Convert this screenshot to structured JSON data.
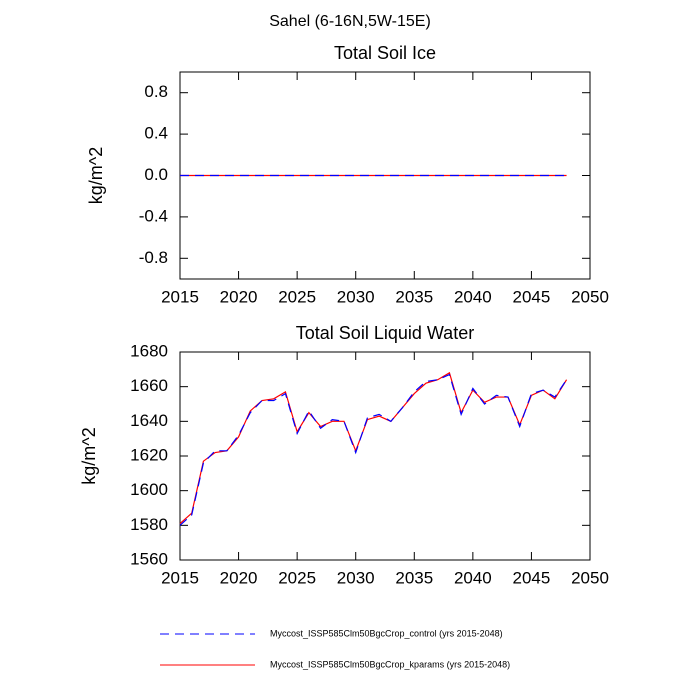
{
  "title": "Sahel (6-16N,5W-15E)",
  "chart_data": [
    {
      "type": "line",
      "title": "Total Soil Ice",
      "y_label": "kg/m^2",
      "x": [
        2015,
        2016,
        2017,
        2018,
        2019,
        2020,
        2021,
        2022,
        2023,
        2024,
        2025,
        2026,
        2027,
        2028,
        2029,
        2030,
        2031,
        2032,
        2033,
        2034,
        2035,
        2036,
        2037,
        2038,
        2039,
        2040,
        2041,
        2042,
        2043,
        2044,
        2045,
        2046,
        2047,
        2048
      ],
      "series": [
        {
          "color": "#0000ff",
          "line_style": "dashed",
          "values": [
            0,
            0,
            0,
            0,
            0,
            0,
            0,
            0,
            0,
            0,
            0,
            0,
            0,
            0,
            0,
            0,
            0,
            0,
            0,
            0,
            0,
            0,
            0,
            0,
            0,
            0,
            0,
            0,
            0,
            0,
            0,
            0,
            0,
            0
          ]
        },
        {
          "color": "#ff0000",
          "line_style": "solid",
          "values": [
            0,
            0,
            0,
            0,
            0,
            0,
            0,
            0,
            0,
            0,
            0,
            0,
            0,
            0,
            0,
            0,
            0,
            0,
            0,
            0,
            0,
            0,
            0,
            0,
            0,
            0,
            0,
            0,
            0,
            0,
            0,
            0,
            0,
            0
          ]
        }
      ],
      "xlim": [
        2015,
        2050
      ],
      "xticks": [
        2015,
        2020,
        2025,
        2030,
        2035,
        2040,
        2045,
        2050
      ],
      "ylim": [
        -1,
        1
      ],
      "yticks": [
        -0.8,
        -0.4,
        {
          "value": 0,
          "label": "0.0"
        },
        0.4,
        0.8
      ]
    },
    {
      "type": "line",
      "title": "Total Soil Liquid Water",
      "y_label": "kg/m^2",
      "x": [
        2015,
        2016,
        2017,
        2018,
        2019,
        2020,
        2021,
        2022,
        2023,
        2024,
        2025,
        2026,
        2027,
        2028,
        2029,
        2030,
        2031,
        2032,
        2033,
        2034,
        2035,
        2036,
        2037,
        2038,
        2039,
        2040,
        2041,
        2042,
        2043,
        2044,
        2045,
        2046,
        2047,
        2048
      ],
      "series": [
        {
          "name": "Myccost_ISSP585Clm50BgcCrop_control (yrs 2015-2048)",
          "color": "#0000ff",
          "line_style": "dashed",
          "values": [
            1580,
            1586,
            1616,
            1623,
            1623,
            1632,
            1645,
            1652,
            1652,
            1656,
            1633,
            1646,
            1636,
            1641,
            1640,
            1622,
            1642,
            1644,
            1640,
            1648,
            1657,
            1663,
            1664,
            1667,
            1644,
            1659,
            1650,
            1655,
            1654,
            1637,
            1656,
            1658,
            1654,
            1664
          ]
        },
        {
          "name": "Myccost_ISSP585Clm50BgcCrop_kparams (yrs 2015-2048)",
          "color": "#ff0000",
          "line_style": "solid",
          "values": [
            1581,
            1587,
            1617,
            1622,
            1623,
            1631,
            1646,
            1652,
            1653,
            1657,
            1634,
            1645,
            1637,
            1640,
            1640,
            1623,
            1641,
            1643,
            1640,
            1648,
            1656,
            1662,
            1664,
            1668,
            1645,
            1658,
            1651,
            1654,
            1654,
            1638,
            1655,
            1658,
            1653,
            1664
          ]
        }
      ],
      "xlim": [
        2015,
        2050
      ],
      "xticks": [
        2015,
        2020,
        2025,
        2030,
        2035,
        2040,
        2045,
        2050
      ],
      "ylim": [
        1560,
        1680
      ],
      "yticks": [
        1560,
        1580,
        1600,
        1620,
        1640,
        1660,
        1680
      ]
    }
  ]
}
